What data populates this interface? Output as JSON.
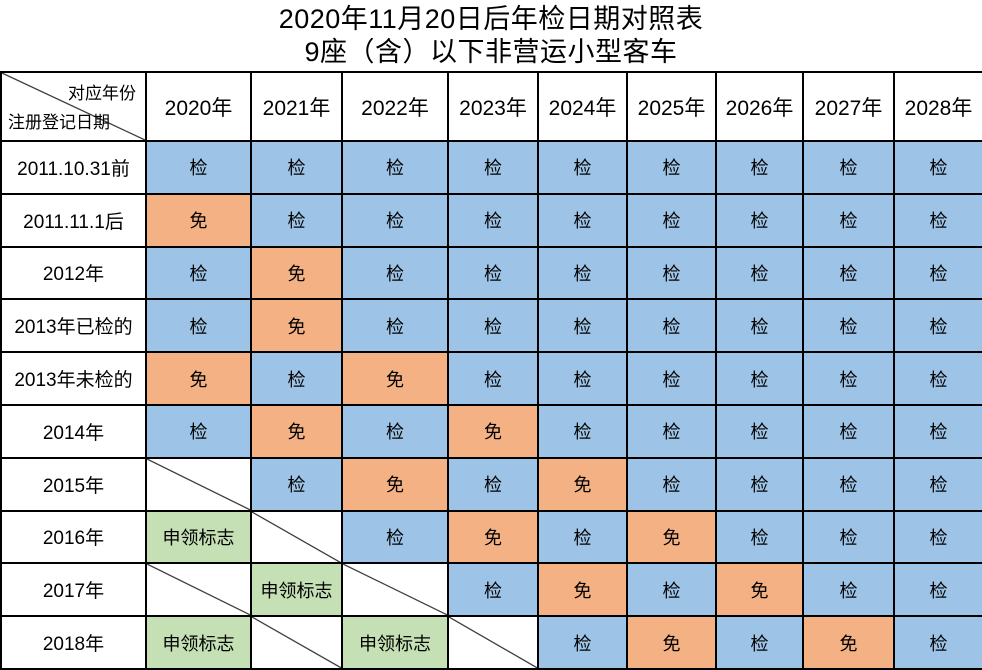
{
  "title": {
    "line1": "2020年11月20日后年检日期对照表",
    "line2": "9座（含）以下非营运小型客车"
  },
  "corner": {
    "top_right_label": "对应年份",
    "bottom_left_label": "注册登记日期"
  },
  "columns": [
    "2020年",
    "2021年",
    "2022年",
    "2023年",
    "2024年",
    "2025年",
    "2026年",
    "2027年",
    "2028年"
  ],
  "colors": {
    "inspect_bg": "#9DC3E6",
    "exempt_bg": "#F4B183",
    "badge_bg": "#C5E0B4",
    "grid_line": "#000000",
    "diagonal_line": "#3F3F3F",
    "text": "#000000",
    "background": "#FFFFFF"
  },
  "rows": [
    {
      "label": "2011.10.31前",
      "cells": [
        {
          "text": "检",
          "type": "inspect"
        },
        {
          "text": "检",
          "type": "inspect"
        },
        {
          "text": "检",
          "type": "inspect"
        },
        {
          "text": "检",
          "type": "inspect"
        },
        {
          "text": "检",
          "type": "inspect"
        },
        {
          "text": "检",
          "type": "inspect"
        },
        {
          "text": "检",
          "type": "inspect"
        },
        {
          "text": "检",
          "type": "inspect"
        },
        {
          "text": "检",
          "type": "inspect"
        }
      ]
    },
    {
      "label": "2011.11.1后",
      "cells": [
        {
          "text": "免",
          "type": "exempt"
        },
        {
          "text": "检",
          "type": "inspect"
        },
        {
          "text": "检",
          "type": "inspect"
        },
        {
          "text": "检",
          "type": "inspect"
        },
        {
          "text": "检",
          "type": "inspect"
        },
        {
          "text": "检",
          "type": "inspect"
        },
        {
          "text": "检",
          "type": "inspect"
        },
        {
          "text": "检",
          "type": "inspect"
        },
        {
          "text": "检",
          "type": "inspect"
        }
      ]
    },
    {
      "label": "2012年",
      "cells": [
        {
          "text": "检",
          "type": "inspect"
        },
        {
          "text": "免",
          "type": "exempt"
        },
        {
          "text": "检",
          "type": "inspect"
        },
        {
          "text": "检",
          "type": "inspect"
        },
        {
          "text": "检",
          "type": "inspect"
        },
        {
          "text": "检",
          "type": "inspect"
        },
        {
          "text": "检",
          "type": "inspect"
        },
        {
          "text": "检",
          "type": "inspect"
        },
        {
          "text": "检",
          "type": "inspect"
        }
      ]
    },
    {
      "label": "2013年已检的",
      "cells": [
        {
          "text": "检",
          "type": "inspect"
        },
        {
          "text": "免",
          "type": "exempt"
        },
        {
          "text": "检",
          "type": "inspect"
        },
        {
          "text": "检",
          "type": "inspect"
        },
        {
          "text": "检",
          "type": "inspect"
        },
        {
          "text": "检",
          "type": "inspect"
        },
        {
          "text": "检",
          "type": "inspect"
        },
        {
          "text": "检",
          "type": "inspect"
        },
        {
          "text": "检",
          "type": "inspect"
        }
      ]
    },
    {
      "label": "2013年未检的",
      "cells": [
        {
          "text": "免",
          "type": "exempt"
        },
        {
          "text": "检",
          "type": "inspect"
        },
        {
          "text": "免",
          "type": "exempt"
        },
        {
          "text": "检",
          "type": "inspect"
        },
        {
          "text": "检",
          "type": "inspect"
        },
        {
          "text": "检",
          "type": "inspect"
        },
        {
          "text": "检",
          "type": "inspect"
        },
        {
          "text": "检",
          "type": "inspect"
        },
        {
          "text": "检",
          "type": "inspect"
        }
      ]
    },
    {
      "label": "2014年",
      "cells": [
        {
          "text": "检",
          "type": "inspect"
        },
        {
          "text": "免",
          "type": "exempt"
        },
        {
          "text": "检",
          "type": "inspect"
        },
        {
          "text": "免",
          "type": "exempt"
        },
        {
          "text": "检",
          "type": "inspect"
        },
        {
          "text": "检",
          "type": "inspect"
        },
        {
          "text": "检",
          "type": "inspect"
        },
        {
          "text": "检",
          "type": "inspect"
        },
        {
          "text": "检",
          "type": "inspect"
        }
      ]
    },
    {
      "label": "2015年",
      "cells": [
        {
          "text": "",
          "type": "diagonal"
        },
        {
          "text": "检",
          "type": "inspect"
        },
        {
          "text": "免",
          "type": "exempt"
        },
        {
          "text": "检",
          "type": "inspect"
        },
        {
          "text": "免",
          "type": "exempt"
        },
        {
          "text": "检",
          "type": "inspect"
        },
        {
          "text": "检",
          "type": "inspect"
        },
        {
          "text": "检",
          "type": "inspect"
        },
        {
          "text": "检",
          "type": "inspect"
        }
      ]
    },
    {
      "label": "2016年",
      "cells": [
        {
          "text": "申领标志",
          "type": "badge"
        },
        {
          "text": "",
          "type": "diagonal"
        },
        {
          "text": "检",
          "type": "inspect"
        },
        {
          "text": "免",
          "type": "exempt"
        },
        {
          "text": "检",
          "type": "inspect"
        },
        {
          "text": "免",
          "type": "exempt"
        },
        {
          "text": "检",
          "type": "inspect"
        },
        {
          "text": "检",
          "type": "inspect"
        },
        {
          "text": "检",
          "type": "inspect"
        }
      ]
    },
    {
      "label": "2017年",
      "cells": [
        {
          "text": "",
          "type": "diagonal"
        },
        {
          "text": "申领标志",
          "type": "badge"
        },
        {
          "text": "",
          "type": "diagonal"
        },
        {
          "text": "检",
          "type": "inspect"
        },
        {
          "text": "免",
          "type": "exempt"
        },
        {
          "text": "检",
          "type": "inspect"
        },
        {
          "text": "免",
          "type": "exempt"
        },
        {
          "text": "检",
          "type": "inspect"
        },
        {
          "text": "检",
          "type": "inspect"
        }
      ]
    },
    {
      "label": "2018年",
      "cells": [
        {
          "text": "申领标志",
          "type": "badge"
        },
        {
          "text": "",
          "type": "diagonal"
        },
        {
          "text": "申领标志",
          "type": "badge"
        },
        {
          "text": "",
          "type": "diagonal"
        },
        {
          "text": "检",
          "type": "inspect"
        },
        {
          "text": "免",
          "type": "exempt"
        },
        {
          "text": "检",
          "type": "inspect"
        },
        {
          "text": "免",
          "type": "exempt"
        },
        {
          "text": "检",
          "type": "inspect"
        }
      ]
    }
  ]
}
